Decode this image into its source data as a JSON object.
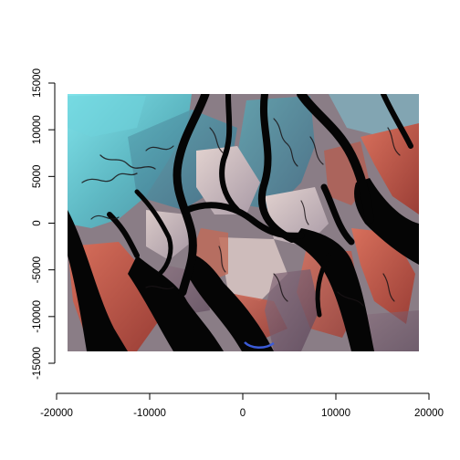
{
  "chart_data": {
    "type": "raster",
    "x_ticks": [
      -20000,
      -10000,
      0,
      10000,
      20000
    ],
    "y_ticks": [
      -15000,
      -10000,
      -5000,
      0,
      5000,
      10000,
      15000
    ],
    "x_tick_labels": [
      "-20000",
      "-10000",
      "0",
      "10000",
      "20000"
    ],
    "y_tick_labels": [
      "-15000",
      "-10000",
      "-5000",
      "0",
      "5000",
      "10000",
      "15000"
    ],
    "xlim": [
      -20000,
      20000
    ],
    "ylim": [
      -15000,
      15000
    ],
    "raster_extent": {
      "xmin": -18800,
      "xmax": 18800,
      "ymin": -13700,
      "ymax": 13800
    },
    "grid": false,
    "legend": "none",
    "colors": {
      "water": "#050505",
      "sediment": "#6fd3dc",
      "vegetation": "#b85a4a",
      "mudflat": "#c8b4b0"
    }
  }
}
